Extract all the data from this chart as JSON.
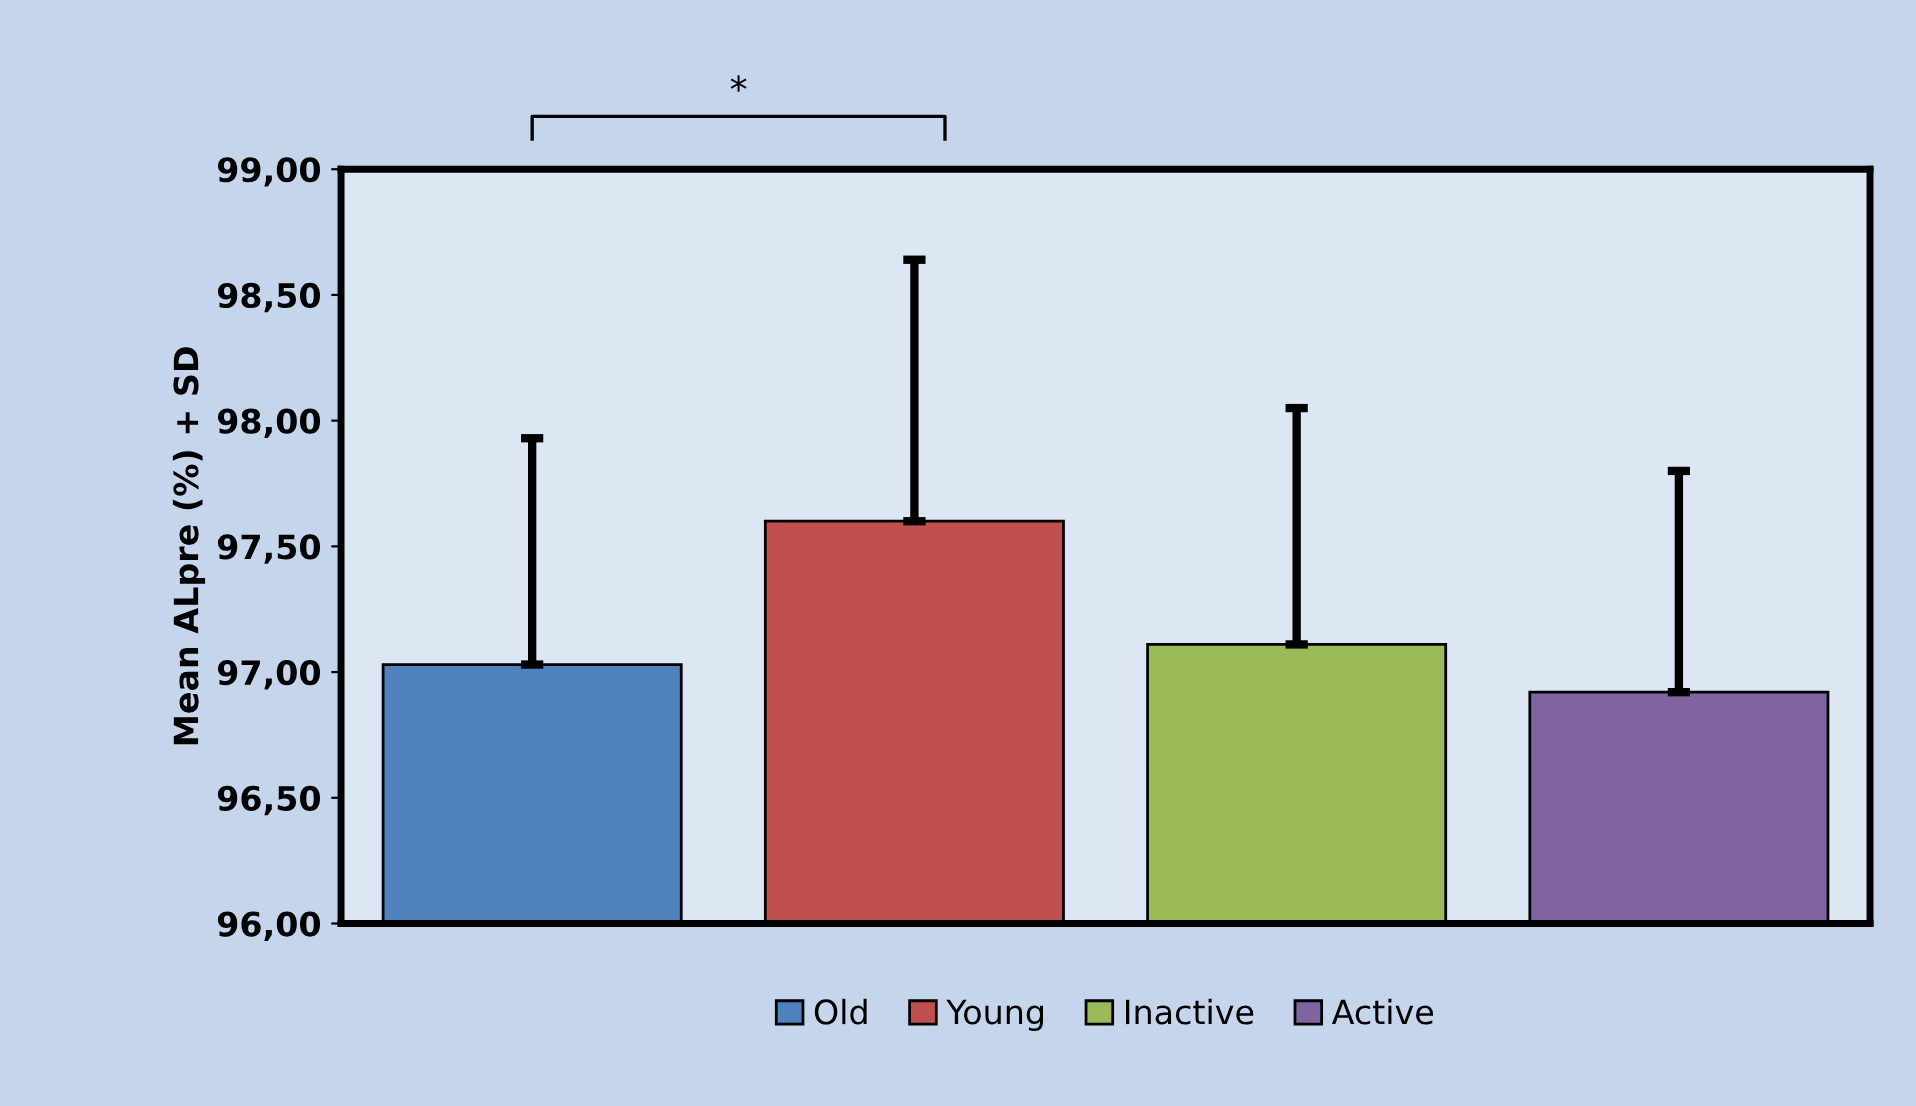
{
  "chart_data": {
    "type": "bar",
    "ylabel": "Mean ALpre (%) + SD",
    "categories": [
      null,
      null,
      null,
      null
    ],
    "series": [
      {
        "name": "Old",
        "color": "#4f81bd",
        "values": [
          97.03,
          null,
          null,
          null
        ],
        "errors": [
          [
            97.03,
            97.93
          ],
          null,
          null,
          null
        ]
      },
      {
        "name": "Young",
        "color": "#c0504d",
        "values": [
          null,
          97.6,
          null,
          null
        ],
        "errors": [
          null,
          [
            97.6,
            98.64
          ],
          null,
          null
        ]
      },
      {
        "name": "Inactive",
        "color": "#9bbb59",
        "values": [
          null,
          null,
          97.11,
          null
        ],
        "errors": [
          null,
          null,
          [
            97.11,
            98.05
          ],
          null
        ]
      },
      {
        "name": "Active",
        "color": "#8064a2",
        "values": [
          null,
          null,
          null,
          96.92
        ],
        "errors": [
          null,
          null,
          null,
          [
            96.92,
            97.8
          ]
        ]
      }
    ],
    "ylim": [
      96,
      99
    ],
    "yticks": [
      {
        "value": 96,
        "label": "96,00"
      },
      {
        "value": 96.5,
        "label": "96,50"
      },
      {
        "value": 97,
        "label": "97,00"
      },
      {
        "value": 97.5,
        "label": "97,50"
      },
      {
        "value": 98,
        "label": "98,00"
      },
      {
        "value": 98.5,
        "label": "98,50"
      },
      {
        "value": 99,
        "label": "99,00"
      }
    ],
    "annotations": [
      "*"
    ],
    "grid": false,
    "legend": "bottom"
  }
}
